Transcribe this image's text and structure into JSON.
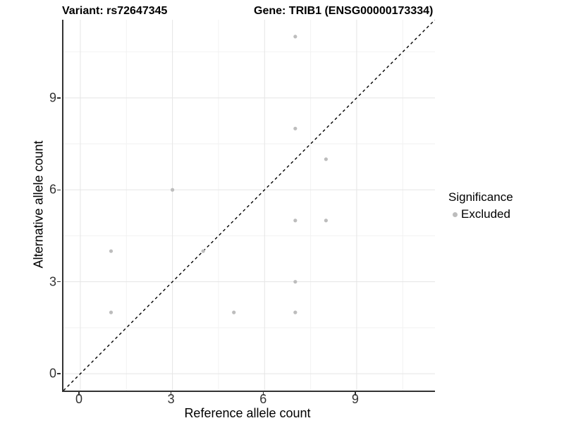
{
  "page": {
    "background_color": "#ffffff"
  },
  "chart_data": {
    "type": "scatter",
    "title_left": "Variant: rs72647345",
    "title_right": "Gene: TRIB1 (ENSG00000173334)",
    "xlabel": "Reference allele count",
    "ylabel": "Alternative allele count",
    "xlim": [
      -0.55,
      11.55
    ],
    "ylim": [
      -0.55,
      11.55
    ],
    "xticks": [
      0,
      3,
      6,
      9
    ],
    "yticks": [
      0,
      3,
      6,
      9
    ],
    "x_minor_ticks": [
      1.5,
      4.5,
      7.5,
      10.5
    ],
    "y_minor_ticks": [
      1.5,
      4.5,
      7.5,
      10.5
    ],
    "grid": "on",
    "major_grid_color": "#e5e5e5",
    "minor_grid_color": "#f2f2f2",
    "axis_line_color": "#333333",
    "identity_line": {
      "type": "y=x",
      "style": "dashed",
      "color": "#000000"
    },
    "series": [
      {
        "name": "Excluded",
        "color": "#bdbdbd",
        "point_radius": 2.6,
        "points": [
          [
            1,
            2
          ],
          [
            1,
            4
          ],
          [
            3,
            6
          ],
          [
            4,
            4
          ],
          [
            5,
            2
          ],
          [
            7,
            2
          ],
          [
            7,
            3
          ],
          [
            7,
            5
          ],
          [
            7,
            8
          ],
          [
            7,
            11
          ],
          [
            8,
            5
          ],
          [
            8,
            7
          ]
        ]
      }
    ],
    "legend": {
      "position": "right",
      "title": "Significance",
      "entries": [
        {
          "label": "Excluded",
          "color": "#bdbdbd"
        }
      ]
    }
  }
}
